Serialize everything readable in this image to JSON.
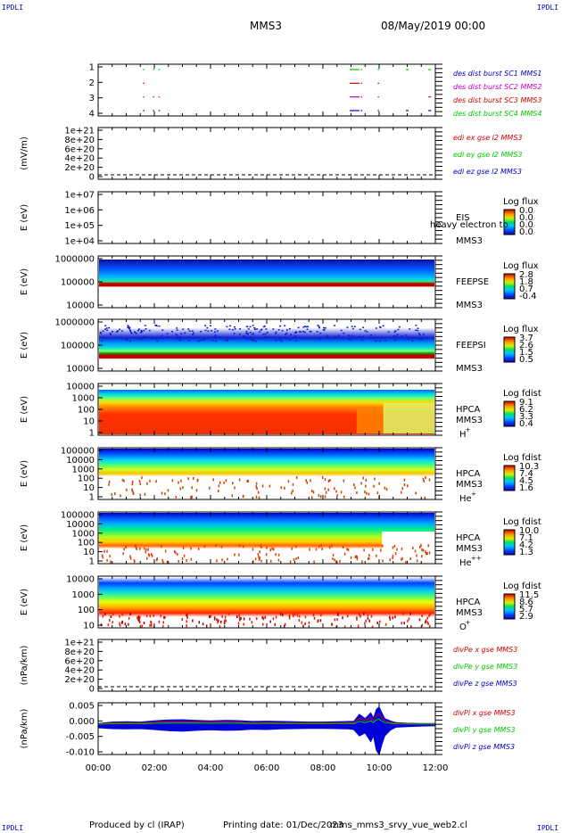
{
  "header": {
    "corner_label": "IPDLI",
    "title": "MMS3",
    "date": "08/May/2019 00:00"
  },
  "footer": {
    "produced_by": "Produced by cl (IRAP)",
    "printing_date": "Printing date: 01/Dec/2023",
    "script_name": "mms_mms3_srvy_vue_web2.cl"
  },
  "colors": {
    "frame": "#000000",
    "blue": "#0000c8",
    "magenta": "#c800c8",
    "red": "#d20000",
    "green": "#00c800"
  },
  "chart_data": [
    {
      "type": "scatter",
      "id": "burst",
      "ylabel": "",
      "yticks": [
        "1",
        "2",
        "3",
        "4"
      ],
      "legend": [
        {
          "text": "des dist burst SC1 MMS1",
          "color": "#0000c8"
        },
        {
          "text": "des dist burst SC2 MMS2",
          "color": "#c800c8"
        },
        {
          "text": "des dist burst SC3 MMS3",
          "color": "#d20000"
        },
        {
          "text": "des dist burst SC4 MMS4",
          "color": "#00c800"
        }
      ],
      "series": [
        {
          "name": "des dist burst SC1 MMS1",
          "y": 1,
          "color": "#0000c8",
          "segments_hours": [
            [
              1.6,
              1.65
            ],
            [
              1.95,
              2.0
            ],
            [
              2.15,
              2.2
            ],
            [
              8.95,
              9.3
            ],
            [
              9.35,
              9.4
            ],
            [
              9.95,
              10.0
            ],
            [
              10.95,
              11.05
            ],
            [
              11.75,
              11.85
            ]
          ]
        },
        {
          "name": "des dist burst SC2 MMS2",
          "y": 2,
          "color": "#c800c8",
          "segments_hours": [
            [
              1.6,
              1.65
            ],
            [
              1.95,
              2.0
            ],
            [
              2.15,
              2.2
            ],
            [
              8.95,
              9.3
            ],
            [
              9.35,
              9.4
            ],
            [
              9.95,
              10.0
            ],
            [
              11.75,
              11.85
            ]
          ]
        },
        {
          "name": "des dist burst SC3 MMS3",
          "y": 3,
          "color": "#d20000",
          "segments_hours": [
            [
              1.6,
              1.65
            ],
            [
              8.95,
              9.3
            ],
            [
              9.35,
              9.4
            ],
            [
              9.95,
              10.0
            ]
          ]
        },
        {
          "name": "des dist burst SC4 MMS4",
          "y": 4,
          "color": "#00c800",
          "segments_hours": [
            [
              1.6,
              1.65
            ],
            [
              1.95,
              2.0
            ],
            [
              2.15,
              2.2
            ],
            [
              8.95,
              9.3
            ],
            [
              9.35,
              9.4
            ],
            [
              9.95,
              10.0
            ],
            [
              10.95,
              11.05
            ],
            [
              11.75,
              11.85
            ]
          ]
        }
      ]
    },
    {
      "type": "line",
      "id": "edi",
      "ylabel": "(mV/m)",
      "yticks": [
        "1e+21",
        "8e+20",
        "6e+20",
        "4e+20",
        "2e+20",
        "0"
      ],
      "legend": [
        {
          "text": "edi ex gse l2 MMS3",
          "color": "#d20000"
        },
        {
          "text": "edi ey gse l2 MMS3",
          "color": "#00c800"
        },
        {
          "text": "edi ez gse l2 MMS3",
          "color": "#0000c8"
        }
      ],
      "zero_line": true
    },
    {
      "type": "heatmap",
      "id": "eis",
      "ylabel": "E (eV)",
      "yticks": [
        "1e+07",
        "1e+06",
        "1e+05",
        "1e+04"
      ],
      "instrument": "EIS",
      "spacecraft": "MMS3",
      "overlay_text": "heavy electron to",
      "colorbar_title": "Log flux",
      "colorbar_ticks": [
        "0.0",
        "0.0",
        "0.0",
        "0.0"
      ]
    },
    {
      "type": "heatmap",
      "id": "feepse",
      "ylabel": "E (eV)",
      "yticks": [
        "1000000",
        "100000",
        "10000"
      ],
      "instrument": "FEEPSE",
      "spacecraft": "MMS3",
      "colorbar_title": "Log flux",
      "colorbar_ticks": [
        "2.8",
        "1.8",
        "0.7",
        "-0.4"
      ]
    },
    {
      "type": "heatmap",
      "id": "feepsi",
      "ylabel": "E (eV)",
      "yticks": [
        "1000000",
        "100000",
        "10000"
      ],
      "instrument": "FEEPSI",
      "spacecraft": "MMS3",
      "colorbar_title": "Log flux",
      "colorbar_ticks": [
        "3.7",
        "2.6",
        "1.5",
        "0.5"
      ]
    },
    {
      "type": "heatmap",
      "id": "hpca_h",
      "ylabel": "E (eV)",
      "yticks": [
        "10000",
        "1000",
        "100",
        "10",
        "1"
      ],
      "instrument": "HPCA",
      "spacecraft": "MMS3",
      "species": "H",
      "species_sup": "+",
      "colorbar_title": "Log fdist",
      "colorbar_ticks": [
        "9.1",
        "6.2",
        "3.3",
        "0.4"
      ]
    },
    {
      "type": "heatmap",
      "id": "hpca_he",
      "ylabel": "E (eV)",
      "yticks": [
        "100000",
        "10000",
        "1000",
        "100",
        "10",
        "1"
      ],
      "instrument": "HPCA",
      "spacecraft": "MMS3",
      "species": "He",
      "species_sup": "+",
      "colorbar_title": "Log fdist",
      "colorbar_ticks": [
        "10.3",
        "7.4",
        "4.5",
        "1.6"
      ]
    },
    {
      "type": "heatmap",
      "id": "hpca_hepp",
      "ylabel": "E (eV)",
      "yticks": [
        "100000",
        "10000",
        "1000",
        "100",
        "10",
        "1"
      ],
      "instrument": "HPCA",
      "spacecraft": "MMS3",
      "species": "He",
      "species_sup": "++",
      "colorbar_title": "Log fdist",
      "colorbar_ticks": [
        "10.0",
        "7.1",
        "4.2",
        "1.3"
      ]
    },
    {
      "type": "heatmap",
      "id": "hpca_o",
      "ylabel": "E (eV)",
      "yticks": [
        "10000",
        "1000",
        "100",
        "10"
      ],
      "instrument": "HPCA",
      "spacecraft": "MMS3",
      "species": "O",
      "species_sup": "+",
      "colorbar_title": "Log fdist",
      "colorbar_ticks": [
        "11.5",
        "8.6",
        "5.7",
        "2.9"
      ]
    },
    {
      "type": "line",
      "id": "divpe",
      "ylabel": "(nPa/km)",
      "yticks": [
        "1e+21",
        "8e+20",
        "6e+20",
        "4e+20",
        "2e+20",
        "0"
      ],
      "legend": [
        {
          "text": "divPe x gse MMS3",
          "color": "#d20000"
        },
        {
          "text": "divPe y gse MMS3",
          "color": "#00c800"
        },
        {
          "text": "divPe z gse MMS3",
          "color": "#0000c8"
        }
      ],
      "zero_line": true
    },
    {
      "type": "line",
      "id": "divpi",
      "ylabel": "(nPa/km)",
      "yticks": [
        "0.005",
        "0.000",
        "-0.005",
        "-0.010"
      ],
      "ylim": [
        -0.0105,
        0.0075
      ],
      "legend": [
        {
          "text": "divPi x gse MMS3",
          "color": "#d20000"
        },
        {
          "text": "divPi y gse MMS3",
          "color": "#00c800"
        },
        {
          "text": "divPi z gse MMS3",
          "color": "#0000c8"
        }
      ],
      "x_hours": [
        0,
        0.5,
        1,
        1.5,
        2,
        2.5,
        3,
        3.5,
        4,
        4.5,
        5,
        5.5,
        6,
        6.5,
        7,
        7.5,
        8,
        8.5,
        8.9,
        9.1,
        9.3,
        9.5,
        9.7,
        9.8,
        9.9,
        10.0,
        10.1,
        10.2,
        10.4,
        10.6,
        11,
        11.5,
        12
      ],
      "envelope_max": [
        0.0003,
        0.0008,
        0.0009,
        0.0008,
        0.0012,
        0.0015,
        0.0016,
        0.0014,
        0.0012,
        0.0014,
        0.0013,
        0.001,
        0.0011,
        0.001,
        0.0009,
        0.0008,
        0.0008,
        0.0009,
        0.001,
        0.001,
        0.0035,
        0.002,
        0.004,
        0.0022,
        0.0052,
        0.006,
        0.004,
        0.002,
        0.0012,
        0.0006,
        0.0004,
        0.0003,
        0.0003
      ],
      "envelope_min": [
        -0.0012,
        -0.0015,
        -0.0016,
        -0.0015,
        -0.0018,
        -0.0022,
        -0.0024,
        -0.0021,
        -0.0019,
        -0.0021,
        -0.002,
        -0.0017,
        -0.0018,
        -0.0016,
        -0.0015,
        -0.0014,
        -0.0014,
        -0.0015,
        -0.0016,
        -0.0018,
        -0.004,
        -0.003,
        -0.006,
        -0.004,
        -0.009,
        -0.0105,
        -0.007,
        -0.004,
        -0.002,
        -0.001,
        -0.0008,
        -0.0006,
        -0.0005
      ]
    }
  ],
  "x_axis": {
    "tick_labels": [
      "00:00",
      "02:00",
      "04:00",
      "06:00",
      "08:00",
      "10:00",
      "12:00"
    ],
    "hours_range": [
      0,
      12
    ]
  }
}
